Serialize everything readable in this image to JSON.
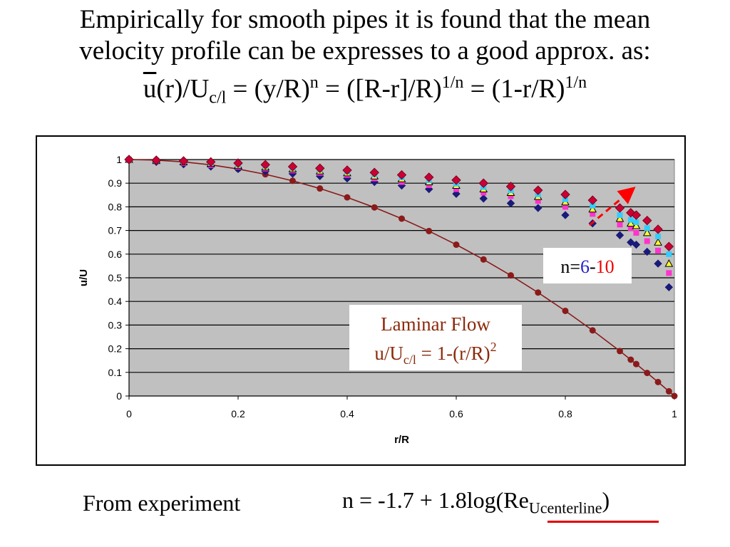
{
  "title": {
    "line1": "Empirically for smooth pipes it is found that the mean",
    "line2": "velocity profile can be expresses to a good approx. as:",
    "eq_u": "u",
    "eq_r": "(r)/U",
    "eq_sub_cl": "c/l",
    "eq_part2": " = (y/R)",
    "eq_sup_n": "n",
    "eq_part3": " = ([R-r]/R)",
    "eq_sup_1n_a": "1/n",
    "eq_part4": " = (1-r/R)",
    "eq_sup_1n_b": "1/n"
  },
  "footer": {
    "left_text": "From experiment",
    "formula_main": "n = -1.7 + 1.8log(Re",
    "formula_sub": "Ucenterline",
    "formula_close": ")"
  },
  "colors": {
    "plot_bg": "#c0c0c0",
    "laminar": "#8b1a1a",
    "navy": "#1a1a7a",
    "magenta": "#ff33cc",
    "yellow": "#ffff33",
    "cyan": "#33ccff",
    "red_marker": "#cc0033",
    "arrow": "#ff0000",
    "n_low": "#2222cc",
    "n_high": "#ee0000",
    "laminar_text": "#8b2a0a",
    "underline": "#e00000"
  },
  "chart_data": {
    "type": "scatter",
    "xlabel": "r/R",
    "ylabel": "u/U",
    "xlim": [
      0,
      1
    ],
    "ylim": [
      0,
      1
    ],
    "xticks": [
      "0",
      "0.2",
      "0.4",
      "0.6",
      "0.8",
      "1"
    ],
    "yticks": [
      "0",
      "0.1",
      "0.2",
      "0.3",
      "0.4",
      "0.5",
      "0.6",
      "0.7",
      "0.8",
      "0.9",
      "1"
    ],
    "grid": "horizontal",
    "x": [
      0,
      0.05,
      0.1,
      0.15,
      0.2,
      0.25,
      0.3,
      0.35,
      0.4,
      0.45,
      0.5,
      0.55,
      0.6,
      0.65,
      0.7,
      0.75,
      0.8,
      0.85,
      0.9,
      0.92,
      0.93,
      0.95,
      0.97,
      0.99
    ],
    "laminar": {
      "x": [
        0,
        0.05,
        0.1,
        0.15,
        0.2,
        0.25,
        0.3,
        0.35,
        0.4,
        0.45,
        0.5,
        0.55,
        0.6,
        0.65,
        0.7,
        0.75,
        0.8,
        0.85,
        0.9,
        0.92,
        0.93,
        0.95,
        0.97,
        0.99,
        1.0
      ],
      "y": [
        1.0,
        0.9975,
        0.99,
        0.9775,
        0.96,
        0.9375,
        0.91,
        0.8775,
        0.84,
        0.7975,
        0.75,
        0.6975,
        0.64,
        0.5775,
        0.51,
        0.4375,
        0.36,
        0.2775,
        0.19,
        0.1536,
        0.1351,
        0.0975,
        0.0591,
        0.0199,
        0.0
      ]
    },
    "series": [
      {
        "marker": "diamond",
        "y": [
          1.0,
          0.99,
          0.98,
          0.97,
          0.96,
          0.95,
          0.94,
          0.93,
          0.92,
          0.905,
          0.89,
          0.875,
          0.855,
          0.835,
          0.815,
          0.795,
          0.765,
          0.73,
          0.68,
          0.65,
          0.64,
          0.61,
          0.56,
          0.46
        ]
      },
      {
        "marker": "square",
        "y": [
          1.0,
          0.993,
          0.985,
          0.977,
          0.97,
          0.962,
          0.954,
          0.944,
          0.935,
          0.92,
          0.905,
          0.892,
          0.875,
          0.86,
          0.845,
          0.825,
          0.8,
          0.77,
          0.725,
          0.71,
          0.69,
          0.655,
          0.615,
          0.52
        ]
      },
      {
        "marker": "triangle",
        "y": [
          1.0,
          0.995,
          0.99,
          0.983,
          0.975,
          0.968,
          0.96,
          0.951,
          0.943,
          0.93,
          0.918,
          0.905,
          0.89,
          0.875,
          0.86,
          0.843,
          0.82,
          0.79,
          0.75,
          0.73,
          0.72,
          0.69,
          0.65,
          0.56
        ]
      },
      {
        "marker": "square",
        "y": [
          1.0,
          0.996,
          0.992,
          0.986,
          0.98,
          0.973,
          0.965,
          0.957,
          0.949,
          0.937,
          0.925,
          0.912,
          0.898,
          0.884,
          0.87,
          0.853,
          0.832,
          0.805,
          0.765,
          0.745,
          0.735,
          0.71,
          0.675,
          0.6
        ]
      },
      {
        "marker": "diamond",
        "y": [
          1.0,
          0.997,
          0.994,
          0.99,
          0.985,
          0.978,
          0.97,
          0.963,
          0.955,
          0.945,
          0.935,
          0.925,
          0.913,
          0.9,
          0.886,
          0.87,
          0.852,
          0.828,
          0.795,
          0.775,
          0.765,
          0.742,
          0.705,
          0.632
        ]
      }
    ],
    "annotations": {
      "n_prefix": "n=",
      "n_low": "6",
      "n_dash": "-",
      "n_high": "10",
      "laminar_line1": "Laminar Flow",
      "laminar_l2_a": "u/U",
      "laminar_l2_sub": "c/l",
      "laminar_l2_b": " = 1-(r/R)",
      "laminar_l2_sup": "2"
    }
  }
}
